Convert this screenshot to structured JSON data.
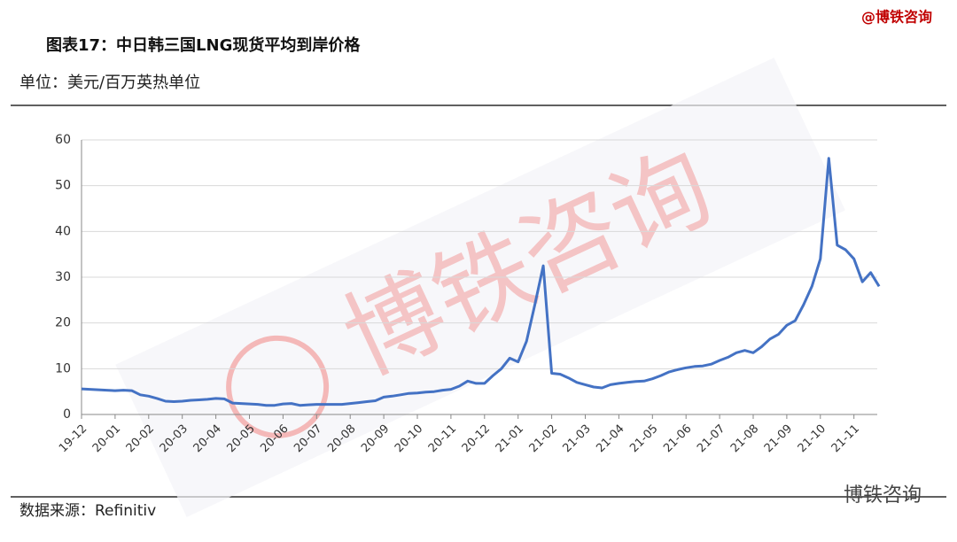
{
  "header": {
    "brand": "@博铁咨询"
  },
  "chart_data": {
    "type": "line",
    "title": "图表17：中日韩三国LNG现货平均到岸价格",
    "subtitle": "单位：美元/百万英热单位",
    "categories": [
      "19-12",
      null,
      null,
      null,
      "20-01",
      null,
      null,
      null,
      "20-02",
      null,
      null,
      null,
      "20-03",
      null,
      null,
      null,
      "20-04",
      null,
      null,
      null,
      "20-05",
      null,
      null,
      null,
      "20-06",
      null,
      null,
      null,
      "20-07",
      null,
      null,
      null,
      "20-08",
      null,
      null,
      null,
      "20-09",
      null,
      null,
      null,
      "20-10",
      null,
      null,
      null,
      "20-11",
      null,
      null,
      null,
      "20-12",
      null,
      null,
      null,
      "21-01",
      null,
      null,
      null,
      "21-02",
      null,
      null,
      null,
      "21-03",
      null,
      null,
      null,
      "21-04",
      null,
      null,
      null,
      "21-05",
      null,
      null,
      null,
      "21-06",
      null,
      null,
      null,
      "21-07",
      null,
      null,
      null,
      "21-08",
      null,
      null,
      null,
      "21-09",
      null,
      null,
      null,
      "21-10",
      null,
      null,
      null,
      "21-11",
      null,
      null,
      null
    ],
    "series": [
      {
        "color": "#4472c4",
        "values": [
          5.6,
          5.5,
          5.4,
          5.3,
          5.2,
          5.3,
          5.2,
          4.3,
          4.0,
          3.5,
          2.9,
          2.8,
          2.9,
          3.1,
          3.2,
          3.3,
          3.5,
          3.4,
          2.5,
          2.4,
          2.3,
          2.2,
          2.0,
          2.0,
          2.3,
          2.4,
          2.0,
          2.1,
          2.2,
          2.2,
          2.2,
          2.2,
          2.4,
          2.6,
          2.8,
          3.0,
          3.8,
          4.0,
          4.3,
          4.6,
          4.7,
          4.9,
          5.0,
          5.3,
          5.5,
          6.2,
          7.3,
          6.8,
          6.8,
          8.5,
          10.0,
          12.3,
          11.5,
          16.0,
          24.0,
          32.5,
          9.0,
          8.8,
          8.0,
          7.0,
          6.5,
          6.0,
          5.8,
          6.5,
          6.8,
          7.0,
          7.2,
          7.3,
          7.8,
          8.5,
          9.3,
          9.8,
          10.2,
          10.5,
          10.6,
          11.0,
          11.8,
          12.5,
          13.5,
          14.0,
          13.5,
          14.8,
          16.5,
          17.5,
          19.5,
          20.5,
          24.0,
          28.0,
          34.0,
          56.0,
          37.0,
          36.0,
          34.0,
          29.0,
          31.0,
          28.0
        ]
      }
    ],
    "ylim": [
      0,
      60
    ],
    "yticks": [
      0,
      10,
      20,
      30,
      40,
      50,
      60
    ],
    "grid": true,
    "source": "数据来源：Refinitiv",
    "watermark": "博铁咨询"
  },
  "footer": {
    "brand": "博铁咨询"
  }
}
